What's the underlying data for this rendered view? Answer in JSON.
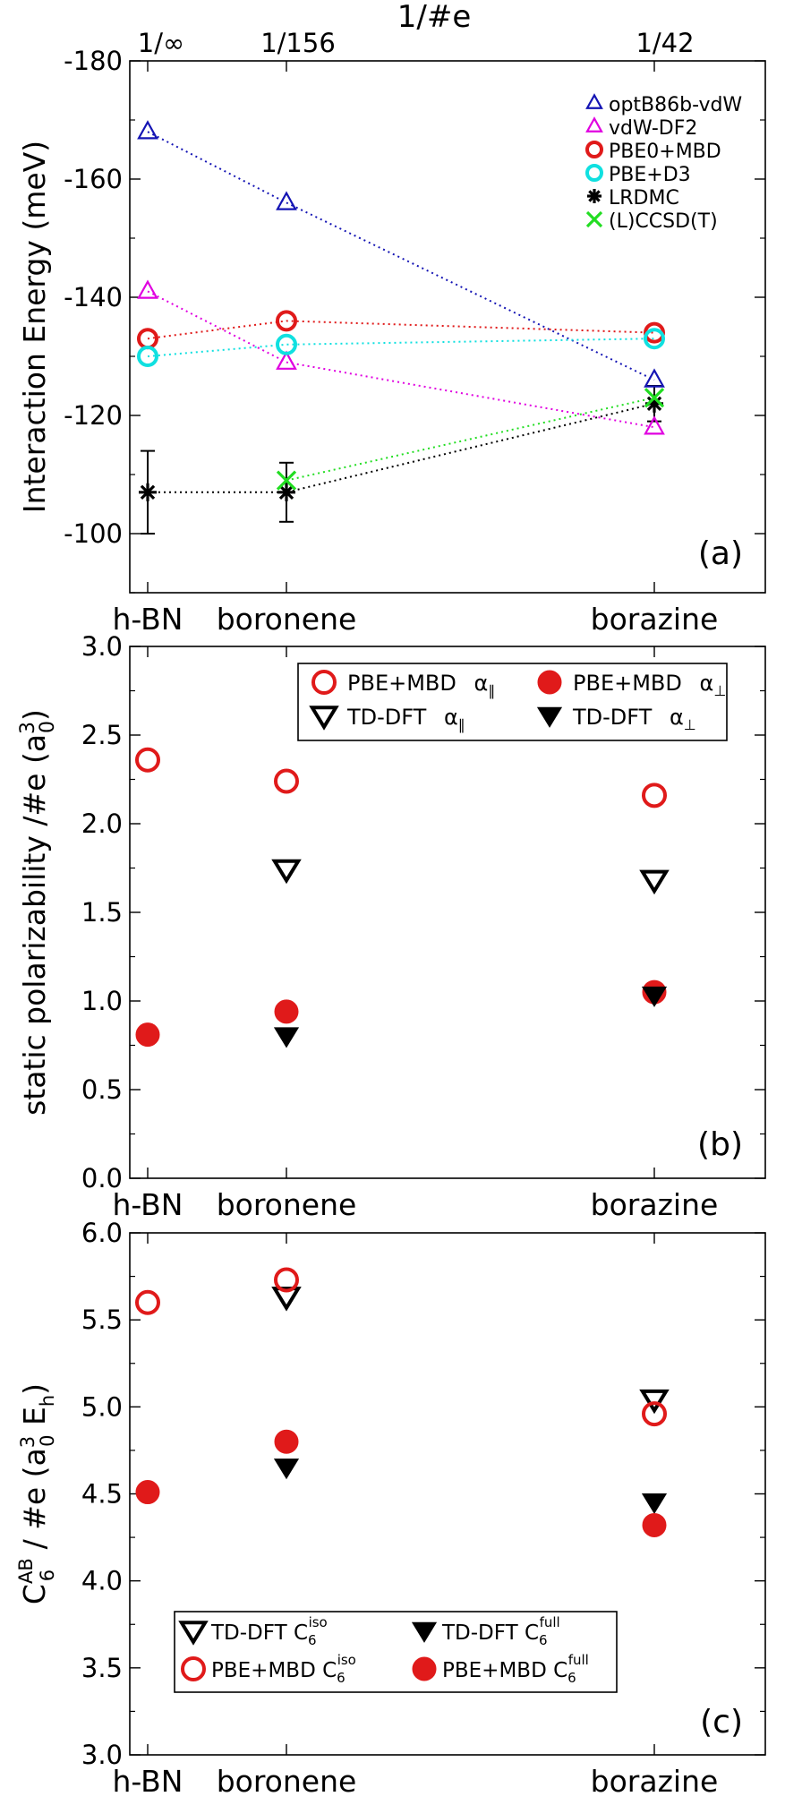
{
  "figure": {
    "top_axis_title": "1/#e",
    "top_ticks": [
      "1/∞",
      "1/156",
      "1/42"
    ]
  },
  "chart_data": [
    {
      "type": "scatter",
      "panel_label": "(a)",
      "x_categories": [
        "h-BN",
        "boronene",
        "borazine"
      ],
      "x_positions": [
        0,
        1,
        3.667
      ],
      "xlabel": "",
      "ylabel": "Interaction Energy (meV)",
      "ylim": [
        -90,
        -180
      ],
      "y_inverted": true,
      "yticks": [
        -100,
        -120,
        -140,
        -160,
        -180
      ],
      "legend": "top-right",
      "series": [
        {
          "name": "optB86b-vdW",
          "marker": "triangle-open",
          "color": "#1414b4",
          "line": "dotted",
          "values": [
            -168,
            -156,
            -126
          ]
        },
        {
          "name": "vdW-DF2",
          "marker": "triangle-open",
          "color": "#e000e0",
          "line": "dotted",
          "values": [
            -141,
            -129,
            -118
          ]
        },
        {
          "name": "PBE0+MBD",
          "marker": "circle-open",
          "color": "#e01a1a",
          "line": "dotted",
          "values": [
            -133,
            -136,
            -134
          ]
        },
        {
          "name": "PBE+D3",
          "marker": "circle-open",
          "color": "#10e0e0",
          "line": "dotted",
          "values": [
            -130,
            -132,
            -133
          ]
        },
        {
          "name": "LRDMC",
          "marker": "asterisk",
          "color": "#000000",
          "line": "dotted",
          "values": [
            -107,
            -107,
            -122
          ],
          "errors": [
            7,
            5,
            3
          ]
        },
        {
          "name": "(L)CCSD(T)",
          "marker": "x",
          "color": "#22dd22",
          "line": "dotted",
          "values": [
            null,
            -109,
            -123
          ]
        }
      ]
    },
    {
      "type": "scatter",
      "panel_label": "(b)",
      "x_categories": [
        "h-BN",
        "boronene",
        "borazine"
      ],
      "x_positions": [
        0,
        1,
        3.667
      ],
      "xlabel": "",
      "ylabel": "static polarizability /#e (a",
      "ylabel_sup": "3",
      "ylabel_sub": "0",
      "ylabel_end": ")",
      "ylim": [
        0.0,
        3.0
      ],
      "yticks": [
        "0.0",
        "0.5",
        "1.0",
        "1.5",
        "2.0",
        "2.5",
        "3.0"
      ],
      "legend": "top-center",
      "series": [
        {
          "name": "PBE+MBD",
          "sym": "α",
          "sub": "∥",
          "marker": "circle-open",
          "color": "#e01a1a",
          "values": [
            2.36,
            2.24,
            2.16
          ]
        },
        {
          "name": "PBE+MBD",
          "sym": "α",
          "sub": "⊥",
          "marker": "circle-filled",
          "color": "#e01a1a",
          "values": [
            0.81,
            0.94,
            1.05
          ]
        },
        {
          "name": "TD-DFT",
          "sym": "α",
          "sub": "∥",
          "marker": "triangle-down-open",
          "color": "#000000",
          "values": [
            null,
            1.74,
            1.68
          ]
        },
        {
          "name": "TD-DFT",
          "sym": "α",
          "sub": "⊥",
          "marker": "triangle-down-filled",
          "color": "#000000",
          "values": [
            null,
            0.8,
            1.03
          ]
        }
      ]
    },
    {
      "type": "scatter",
      "panel_label": "(c)",
      "x_categories": [
        "h-BN",
        "boronene",
        "borazine"
      ],
      "x_positions": [
        0,
        1,
        3.667
      ],
      "xlabel": "",
      "ylabel": "C",
      "ylabel_sub": "6",
      "ylabel_sup": "AB",
      "ylabel_mid": " / #e (a",
      "ylabel_sup2": "3",
      "ylabel_sub2": "0",
      "ylabel_e": " E",
      "ylabel_sub3": "h",
      "ylabel_end": ")",
      "ylim": [
        3.0,
        6.0
      ],
      "yticks": [
        "3.0",
        "3.5",
        "4.0",
        "4.5",
        "5.0",
        "5.5",
        "6.0"
      ],
      "legend": "bottom-center",
      "series": [
        {
          "name": "TD-DFT C",
          "sub": "6",
          "sup": "iso",
          "marker": "triangle-down-open",
          "color": "#000000",
          "values": [
            null,
            5.63,
            5.04
          ]
        },
        {
          "name": "TD-DFT C",
          "sub": "6",
          "sup": "full",
          "marker": "triangle-down-filled",
          "color": "#000000",
          "values": [
            null,
            4.65,
            4.45
          ]
        },
        {
          "name": "PBE+MBD C",
          "sub": "6",
          "sup": "iso",
          "marker": "circle-open",
          "color": "#e01a1a",
          "values": [
            5.6,
            5.73,
            4.96
          ]
        },
        {
          "name": "PBE+MBD C",
          "sub": "6",
          "sup": "full",
          "marker": "circle-filled",
          "color": "#e01a1a",
          "values": [
            4.51,
            4.8,
            4.32
          ]
        }
      ]
    }
  ]
}
